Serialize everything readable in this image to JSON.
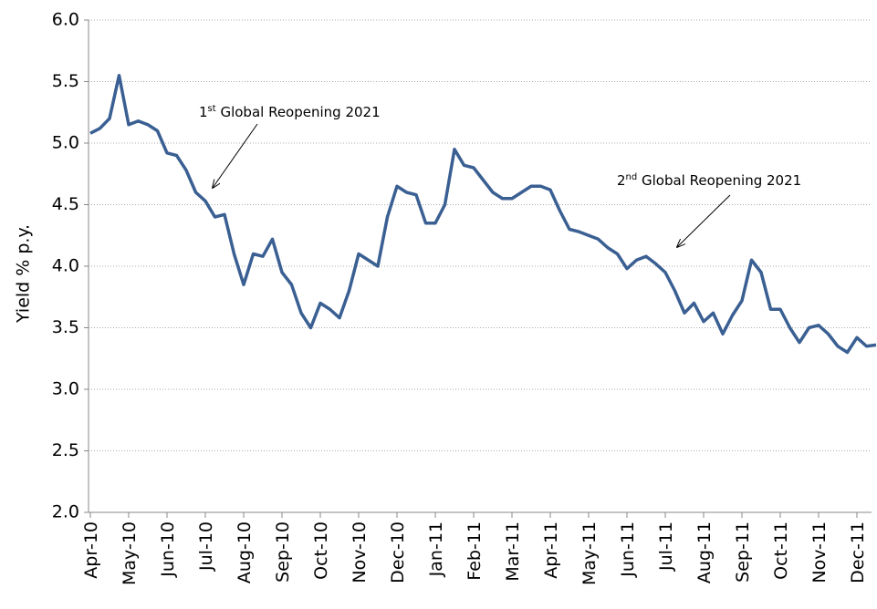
{
  "chart_data": {
    "type": "line",
    "y_label": "Yield % p.y.",
    "categories": [
      "Apr-10",
      null,
      null,
      null,
      "May-10",
      null,
      null,
      null,
      "Jun-10",
      null,
      null,
      null,
      "Jul-10",
      null,
      null,
      null,
      "Aug-10",
      null,
      null,
      null,
      "Sep-10",
      null,
      null,
      null,
      "Oct-10",
      null,
      null,
      null,
      "Nov-10",
      null,
      null,
      null,
      "Dec-10",
      null,
      null,
      null,
      "Jan-11",
      null,
      null,
      null,
      "Feb-11",
      null,
      null,
      null,
      "Mar-11",
      null,
      null,
      null,
      "Apr-11",
      null,
      null,
      null,
      "May-11",
      null,
      null,
      null,
      "Jun-11",
      null,
      null,
      null,
      "Jul-11",
      null,
      null,
      null,
      "Aug-11",
      null,
      null,
      null,
      "Sep-11",
      null,
      null,
      null,
      "Oct-11",
      null,
      null,
      null,
      "Nov-11",
      null,
      null,
      null,
      "Dec-11",
      null,
      null
    ],
    "series": [
      {
        "color": "#3a5f92",
        "values": [
          5.08,
          5.12,
          5.2,
          5.55,
          5.15,
          5.18,
          5.15,
          5.1,
          4.92,
          4.9,
          4.78,
          4.6,
          4.53,
          4.4,
          4.42,
          4.1,
          3.85,
          4.1,
          4.08,
          4.22,
          3.95,
          3.85,
          3.62,
          3.5,
          3.7,
          3.65,
          3.58,
          3.8,
          4.1,
          4.05,
          4.0,
          4.4,
          4.65,
          4.6,
          4.58,
          4.35,
          4.35,
          4.5,
          4.95,
          4.82,
          4.8,
          4.7,
          4.6,
          4.55,
          4.55,
          4.6,
          4.65,
          4.65,
          4.62,
          4.45,
          4.3,
          4.28,
          4.25,
          4.22,
          4.15,
          4.1,
          3.98,
          4.05,
          4.08,
          4.02,
          3.95,
          3.8,
          3.62,
          3.7,
          3.55,
          3.62,
          3.45,
          3.6,
          3.72,
          4.05,
          3.95,
          3.65,
          3.65,
          3.5,
          3.38,
          3.5,
          3.52,
          3.45,
          3.35,
          3.3,
          3.42,
          3.35,
          3.36
        ]
      }
    ],
    "ylim": [
      2,
      6
    ],
    "yticks": [
      {
        "value": 2,
        "label": "2.0"
      },
      {
        "value": 2.5,
        "label": "2.5"
      },
      {
        "value": 3,
        "label": "3.0"
      },
      {
        "value": 3.5,
        "label": "3.5"
      },
      {
        "value": 4,
        "label": "4.0"
      },
      {
        "value": 4.5,
        "label": "4.5"
      },
      {
        "value": 5,
        "label": "5.0"
      },
      {
        "value": 5.5,
        "label": "5.5"
      },
      {
        "value": 6,
        "label": "6.0"
      }
    ],
    "grid": true,
    "annotations": [
      {
        "num": "1",
        "sup": "st",
        "text": " Global Reopening 2021"
      },
      {
        "num": "2",
        "sup": "nd",
        "text": " Global Reopening 2021"
      }
    ]
  }
}
